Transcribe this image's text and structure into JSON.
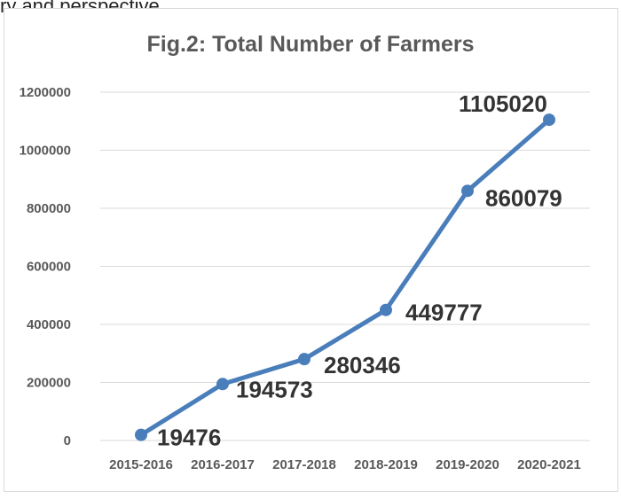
{
  "top_text": "ry and perspective",
  "chart_data": {
    "type": "line",
    "title": "Fig.2: Total Number of Farmers",
    "categories": [
      "2015-2016",
      "2016-2017",
      "2017-2018",
      "2018-2019",
      "2019-2020",
      "2020-2021"
    ],
    "series": [
      {
        "values": [
          19476,
          194573,
          280346,
          449777,
          860079,
          1105020
        ]
      }
    ],
    "data_labels": [
      "19476",
      "194573",
      "280346",
      "449777",
      "860079",
      "1105020"
    ],
    "y_ticks": [
      0,
      200000,
      400000,
      600000,
      800000,
      1000000,
      1200000
    ],
    "y_tick_labels": [
      "0",
      "200000",
      "400000",
      "600000",
      "800000",
      "1000000",
      "1200000"
    ],
    "ylim": [
      0,
      1200000
    ],
    "grid": true,
    "legend": "none",
    "colors": {
      "line": "#4a7ebb",
      "grid": "#d9d9d9",
      "text": "#595959",
      "label": "#333333"
    }
  }
}
